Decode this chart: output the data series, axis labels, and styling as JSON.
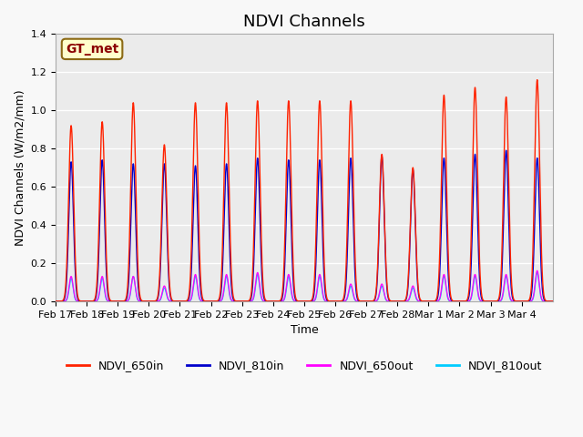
{
  "title": "NDVI Channels",
  "ylabel": "NDVI Channels (W/m2/mm)",
  "xlabel": "Time",
  "annotation": "GT_met",
  "ylim": [
    0.0,
    1.4
  ],
  "tick_labels": [
    "Feb 17",
    "Feb 18",
    "Feb 19",
    "Feb 20",
    "Feb 21",
    "Feb 22",
    "Feb 23",
    "Feb 24",
    "Feb 25",
    "Feb 26",
    "Feb 27",
    "Feb 28",
    "Mar 1",
    "Mar 2",
    "Mar 3",
    "Mar 4"
  ],
  "peak_heights_650in": [
    0.92,
    0.94,
    1.04,
    0.82,
    1.04,
    1.04,
    1.05,
    1.05,
    1.05,
    1.05,
    0.77,
    0.7,
    1.08,
    1.12,
    1.07,
    1.16
  ],
  "peak_heights_810in": [
    0.73,
    0.74,
    0.72,
    0.72,
    0.71,
    0.72,
    0.75,
    0.74,
    0.74,
    0.75,
    0.76,
    0.69,
    0.75,
    0.77,
    0.79,
    0.75
  ],
  "peak_heights_650out": [
    0.13,
    0.13,
    0.13,
    0.08,
    0.14,
    0.14,
    0.15,
    0.14,
    0.14,
    0.09,
    0.09,
    0.08,
    0.14,
    0.14,
    0.14,
    0.16
  ],
  "peak_heights_810out": [
    0.12,
    0.12,
    0.13,
    0.07,
    0.13,
    0.13,
    0.14,
    0.13,
    0.13,
    0.08,
    0.08,
    0.07,
    0.13,
    0.13,
    0.13,
    0.15
  ],
  "color_650in": "#ff2200",
  "color_810in": "#0000cc",
  "color_650out": "#ff00ff",
  "color_810out": "#00ccff",
  "fig_bg_color": "#f8f8f8",
  "plot_bg_color": "#ebebeb",
  "title_fontsize": 13,
  "label_fontsize": 9,
  "tick_fontsize": 8,
  "legend_fontsize": 9,
  "yticks": [
    0.0,
    0.2,
    0.4,
    0.6,
    0.8,
    1.0,
    1.2,
    1.4
  ]
}
